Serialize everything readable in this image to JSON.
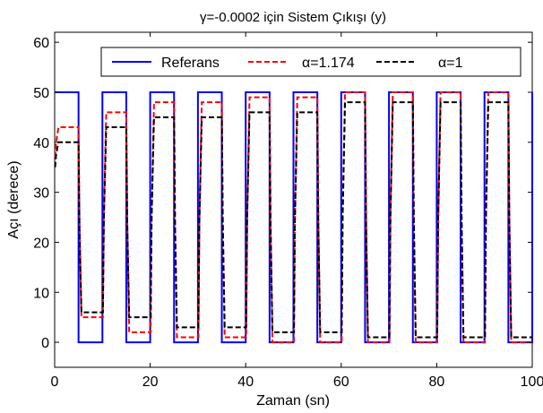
{
  "chart_data": {
    "type": "line",
    "title": "γ=-0.0002 için Sistem Çıkışı (y)",
    "xlabel": "Zaman (sn)",
    "ylabel": "Açı (derece)",
    "xlim": [
      0,
      100
    ],
    "ylim": [
      -5,
      62
    ],
    "xticks": [
      0,
      20,
      40,
      60,
      80,
      100
    ],
    "xtick_labels": [
      "0",
      "20",
      "40",
      "60",
      "80",
      "100"
    ],
    "yticks": [
      0,
      10,
      20,
      30,
      40,
      50,
      60
    ],
    "ytick_labels": [
      "0",
      "10",
      "20",
      "30",
      "40",
      "50",
      "60"
    ],
    "grid": false,
    "legend": "top",
    "square_wave": {
      "period": 10,
      "high": 50,
      "low": 0
    },
    "series": [
      {
        "name": "Referans",
        "color": "#0000ff",
        "style": "solid",
        "high_levels": [
          50,
          50,
          50,
          50,
          50,
          50,
          50,
          50,
          50,
          50
        ],
        "low_levels": [
          0,
          0,
          0,
          0,
          0,
          0,
          0,
          0,
          0,
          0
        ]
      },
      {
        "name": "α=1.174",
        "color": "#ff0000",
        "style": "dashed",
        "high_levels": [
          43,
          46,
          48,
          48,
          49,
          49,
          50,
          50,
          50,
          50
        ],
        "low_levels": [
          5,
          2,
          1,
          1,
          0,
          0,
          0,
          0,
          0,
          0
        ]
      },
      {
        "name": "α=1",
        "color": "#000000",
        "style": "dashed",
        "high_levels": [
          40,
          43,
          45,
          45,
          46,
          46,
          48,
          48,
          48,
          48
        ],
        "low_levels": [
          6,
          5,
          3,
          3,
          2,
          2,
          1,
          1,
          1,
          1
        ]
      }
    ]
  }
}
